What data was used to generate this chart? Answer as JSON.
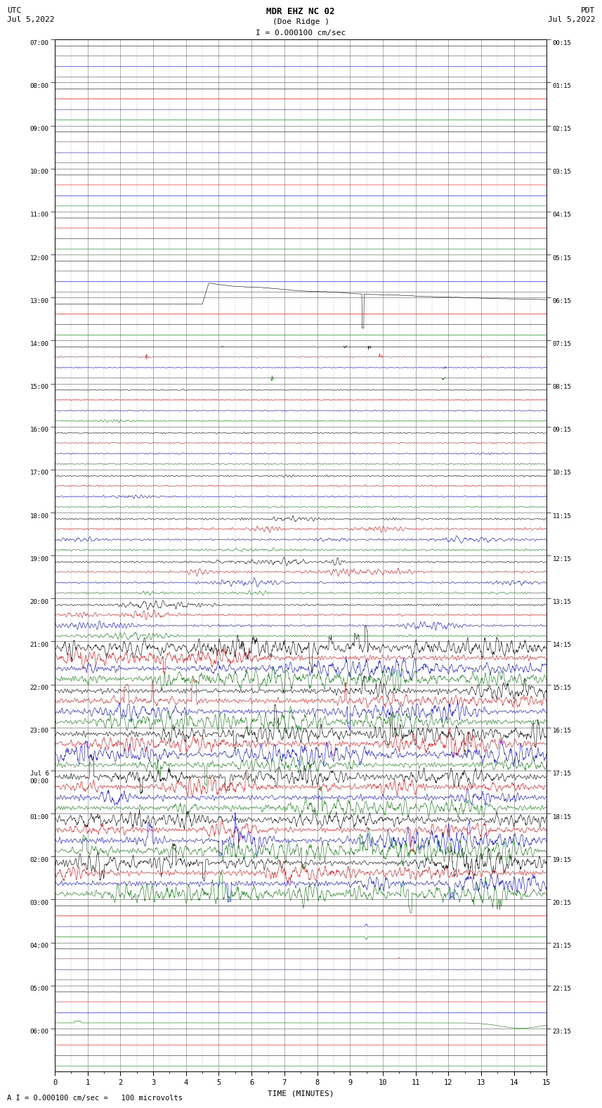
{
  "title_line1": "MDR EHZ NC 02",
  "title_line2": "(Doe Ridge )",
  "title_scale": "I = 0.000100 cm/sec",
  "left_label_top": "UTC",
  "left_label_date": "Jul 5,2022",
  "right_label_top": "PDT",
  "right_label_date": "Jul 5,2022",
  "bottom_label": "TIME (MINUTES)",
  "bottom_note": "A I = 0.000100 cm/sec =   100 microvolts",
  "utc_times": [
    "07:00",
    "08:00",
    "09:00",
    "10:00",
    "11:00",
    "12:00",
    "13:00",
    "14:00",
    "15:00",
    "16:00",
    "17:00",
    "18:00",
    "19:00",
    "20:00",
    "21:00",
    "22:00",
    "23:00",
    "Jul 6\n00:00",
    "01:00",
    "02:00",
    "03:00",
    "04:00",
    "05:00",
    "06:00"
  ],
  "pdt_times": [
    "00:15",
    "01:15",
    "02:15",
    "03:15",
    "04:15",
    "05:15",
    "06:15",
    "07:15",
    "08:15",
    "09:15",
    "10:15",
    "11:15",
    "12:15",
    "13:15",
    "14:15",
    "15:15",
    "16:15",
    "17:15",
    "18:15",
    "19:15",
    "20:15",
    "21:15",
    "22:15",
    "23:15"
  ],
  "n_rows": 24,
  "minutes": 15,
  "colors_per_row": [
    "black",
    "red",
    "blue",
    "green"
  ],
  "background": "white",
  "grid_color": "#777777",
  "figsize": [
    8.5,
    16.13
  ],
  "dpi": 100,
  "font_family": "monospace"
}
